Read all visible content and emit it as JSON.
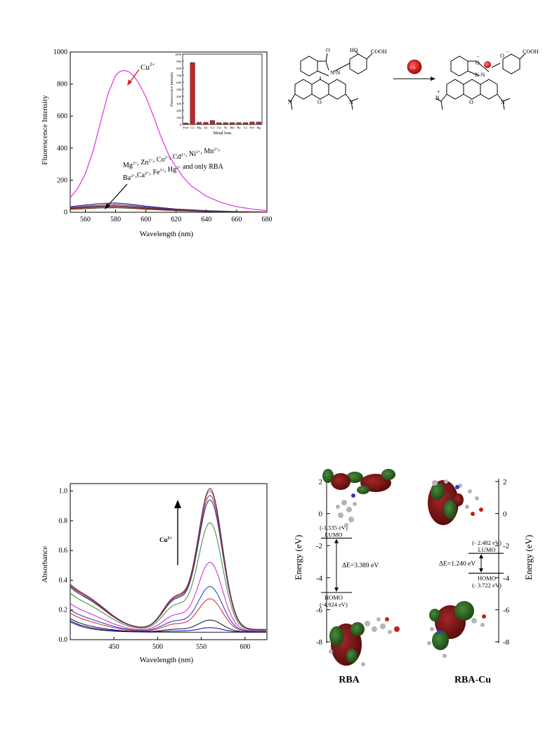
{
  "chart_data": [
    {
      "type": "line",
      "title": "",
      "xlabel": "Wavelength (nm)",
      "ylabel": "Fluorescence Intensity",
      "xlim": [
        550,
        680
      ],
      "ylim": [
        0,
        1000
      ],
      "xticks": [
        560,
        580,
        600,
        620,
        640,
        660,
        680
      ],
      "yticks": [
        0,
        200,
        400,
        600,
        800,
        1000
      ],
      "grid": false,
      "colors": {
        "cu": "#e040e0",
        "arrow": "#d42020",
        "dark": "#1a1a8a"
      },
      "annotations": {
        "cu_label": "Cu",
        "cu_sup": "2+",
        "others_line1": [
          {
            "t": "Mg",
            "s": "2+"
          },
          {
            "t": ", Zn",
            "s": "2+"
          },
          {
            "t": ", Co",
            "s": "2+"
          },
          {
            "t": ", Cd",
            "s": "2+"
          },
          {
            "t": ", Ni",
            "s": "2+"
          },
          {
            "t": ", Mn",
            "s": "2+"
          },
          {
            "t": ",",
            "s": ""
          }
        ],
        "others_line2": [
          {
            "t": "Ba",
            "s": "2+"
          },
          {
            "t": ",Ca",
            "s": "2+"
          },
          {
            "t": ", Fe",
            "s": "3+"
          },
          {
            "t": ", Hg",
            "s": "2+"
          },
          {
            "t": " and only RBA",
            "s": ""
          }
        ]
      },
      "series": [
        {
          "x": [
            550,
            555,
            560,
            565,
            570,
            575,
            580,
            583,
            586,
            589,
            592,
            595,
            600,
            605,
            610,
            615,
            620,
            625,
            630,
            640,
            650,
            660,
            670,
            680
          ],
          "y": [
            90,
            150,
            240,
            380,
            560,
            740,
            855,
            880,
            885,
            875,
            850,
            810,
            720,
            600,
            470,
            360,
            280,
            215,
            165,
            100,
            60,
            35,
            20,
            10
          ]
        },
        {
          "x": [
            550,
            560,
            570,
            580,
            590,
            600,
            620,
            640,
            660,
            680
          ],
          "y": [
            35,
            45,
            55,
            58,
            50,
            38,
            20,
            10,
            5,
            2
          ]
        },
        {
          "x": [
            550,
            560,
            570,
            580,
            590,
            600,
            620,
            640,
            660,
            680
          ],
          "y": [
            30,
            38,
            45,
            48,
            42,
            32,
            17,
            8,
            4,
            2
          ]
        },
        {
          "x": [
            550,
            560,
            570,
            580,
            590,
            600,
            620,
            640,
            660,
            680
          ],
          "y": [
            25,
            32,
            38,
            40,
            35,
            27,
            14,
            7,
            3,
            1
          ]
        },
        {
          "x": [
            550,
            560,
            570,
            580,
            590,
            600,
            620,
            640,
            660,
            680
          ],
          "y": [
            22,
            28,
            33,
            35,
            30,
            23,
            12,
            6,
            3,
            1
          ]
        },
        {
          "x": [
            550,
            560,
            570,
            580,
            590,
            600,
            620,
            640,
            660,
            680
          ],
          "y": [
            18,
            23,
            27,
            28,
            25,
            19,
            10,
            5,
            2,
            1
          ]
        }
      ]
    },
    {
      "type": "bar",
      "title": "",
      "xlabel": "Metal Ions",
      "ylabel": "Fluorescence Intensity",
      "ylim": [
        0,
        1000
      ],
      "yticks": [
        0,
        100,
        200,
        300,
        400,
        500,
        600,
        700,
        800,
        900,
        1000
      ],
      "categories": [
        "Free",
        "Cu",
        "Mg",
        "Zn",
        "Co",
        "Cd",
        "Ni",
        "Mn",
        "Ba",
        "Ca",
        "Fe3",
        "Hg"
      ],
      "values": [
        20,
        880,
        30,
        30,
        55,
        25,
        25,
        25,
        25,
        25,
        35,
        35
      ],
      "colors": {
        "bar": "#c0282a"
      }
    },
    {
      "type": "line",
      "title": "",
      "xlabel": "Wavelength (nm)",
      "ylabel": "Absorbance",
      "xlim": [
        400,
        625
      ],
      "ylim": [
        0,
        1.05
      ],
      "xticks": [
        450,
        500,
        550,
        600
      ],
      "yticks": [
        0.0,
        0.2,
        0.4,
        0.6,
        0.8,
        1.0
      ],
      "tick_labels": [
        "0.0",
        "0.2",
        "0.4",
        "0.6",
        "0.8",
        "1.0"
      ],
      "annotations": {
        "cu_label": "Cu",
        "cu_sup": "2+"
      },
      "peaks": [
        0.0,
        0.03,
        0.08,
        0.22,
        0.3,
        0.46,
        0.72,
        0.87,
        0.9,
        0.93,
        0.945
      ],
      "colors": [
        "#222222",
        "#0000cc",
        "#111111",
        "#d42020",
        "#2030c0",
        "#d020d0",
        "#3a8a30",
        "#2a2aa0",
        "#7a3060",
        "#c04040",
        "#603030"
      ]
    }
  ],
  "scheme": {
    "ho": "HO",
    "cooh_left": "COOH",
    "cooh_right": "COOH",
    "o": "O",
    "n_label": "N",
    "nn": "N-N",
    "nn_right": "N-N",
    "minus": "−",
    "plus": "+",
    "ion": "Cu"
  },
  "energy": {
    "axis_label": "Energy (eV)",
    "yticks": [
      2,
      0,
      -2,
      -4,
      -6,
      -8
    ],
    "ylim": [
      -8,
      2
    ],
    "rba": {
      "label": "RBA",
      "lumo": -1.535,
      "homo": -4.924,
      "lumo_text": "(-1.535 eV)",
      "lumo_label": "LUMO",
      "homo_text": "(-4.924 eV)",
      "homo_label": "HOMO",
      "gap_text": "ΔE=3.389 eV"
    },
    "rbacu": {
      "label": "RBA-Cu",
      "lumo": -2.482,
      "homo": -3.722,
      "lumo_text": "(- 2.482 eV)",
      "lumo_label": "LUMO",
      "homo_text": "(- 3.722 eV)",
      "homo_label": "HOMO",
      "gap_text": "ΔE=1.240 eV"
    }
  }
}
